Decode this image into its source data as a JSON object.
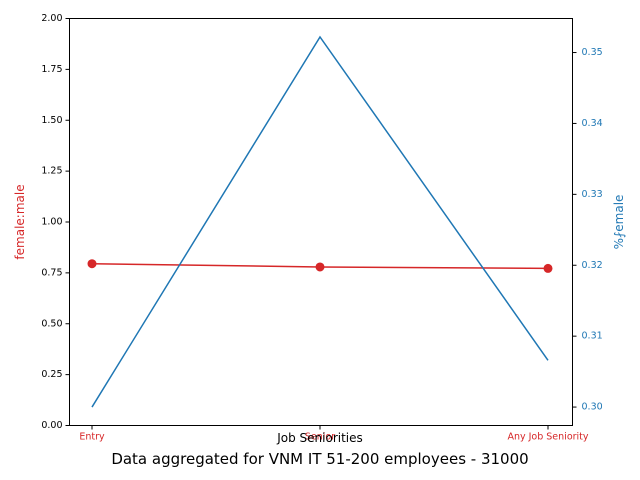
{
  "chart_data": {
    "type": "line",
    "title": "Data aggregated for VNM IT 51-200 employees - 31000",
    "xlabel": "Job Seniorities",
    "categories": [
      "Entry",
      "Senior",
      "Any Job Seniority"
    ],
    "left_axis": {
      "label": "female:male",
      "color": "#d62728",
      "ylim": [
        0,
        2.0
      ],
      "ticks": [
        "0.00",
        "0.25",
        "0.50",
        "0.75",
        "1.00",
        "1.25",
        "1.50",
        "1.75",
        "2.00"
      ]
    },
    "right_axis": {
      "label": "%⨏emale",
      "color": "#1f77b4",
      "ylim": [
        0.2974,
        0.3548
      ],
      "ticks": [
        "0.30",
        "0.31",
        "0.32",
        "0.33",
        "0.34",
        "0.35"
      ]
    },
    "series": [
      {
        "axis": "left",
        "color": "#d62728",
        "marker": "circle",
        "values": [
          0.795,
          0.779,
          0.772
        ]
      },
      {
        "axis": "right",
        "color": "#1f77b4",
        "marker": "none",
        "values": [
          0.3,
          0.3522,
          0.3066
        ]
      }
    ]
  }
}
